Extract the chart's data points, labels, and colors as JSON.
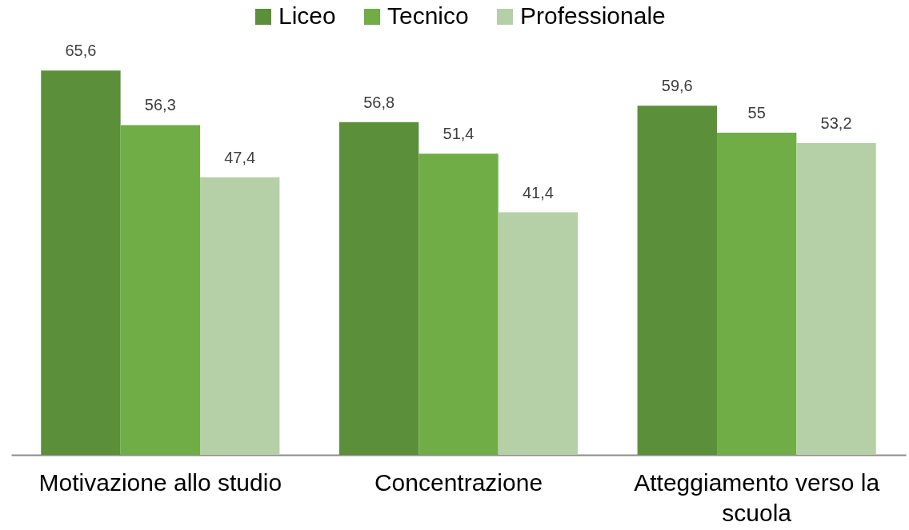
{
  "chart_data": {
    "type": "bar",
    "categories": [
      "Motivazione allo studio",
      "Concentrazione",
      "Atteggiamento verso la scuola"
    ],
    "legend": "top",
    "series": [
      {
        "name": "Liceo",
        "color": "#5b8f3a",
        "values": [
          65.6,
          56.8,
          59.6
        ],
        "value_labels": [
          "65,6",
          "56,8",
          "59,6"
        ]
      },
      {
        "name": "Tecnico",
        "color": "#70ad47",
        "values": [
          56.3,
          51.4,
          55
        ],
        "value_labels": [
          "56,3",
          "51,4",
          "55"
        ]
      },
      {
        "name": "Professionale",
        "color": "#b5d0a7",
        "values": [
          47.4,
          41.4,
          53.2
        ],
        "value_labels": [
          "47,4",
          "41,4",
          "53,2"
        ]
      }
    ]
  }
}
